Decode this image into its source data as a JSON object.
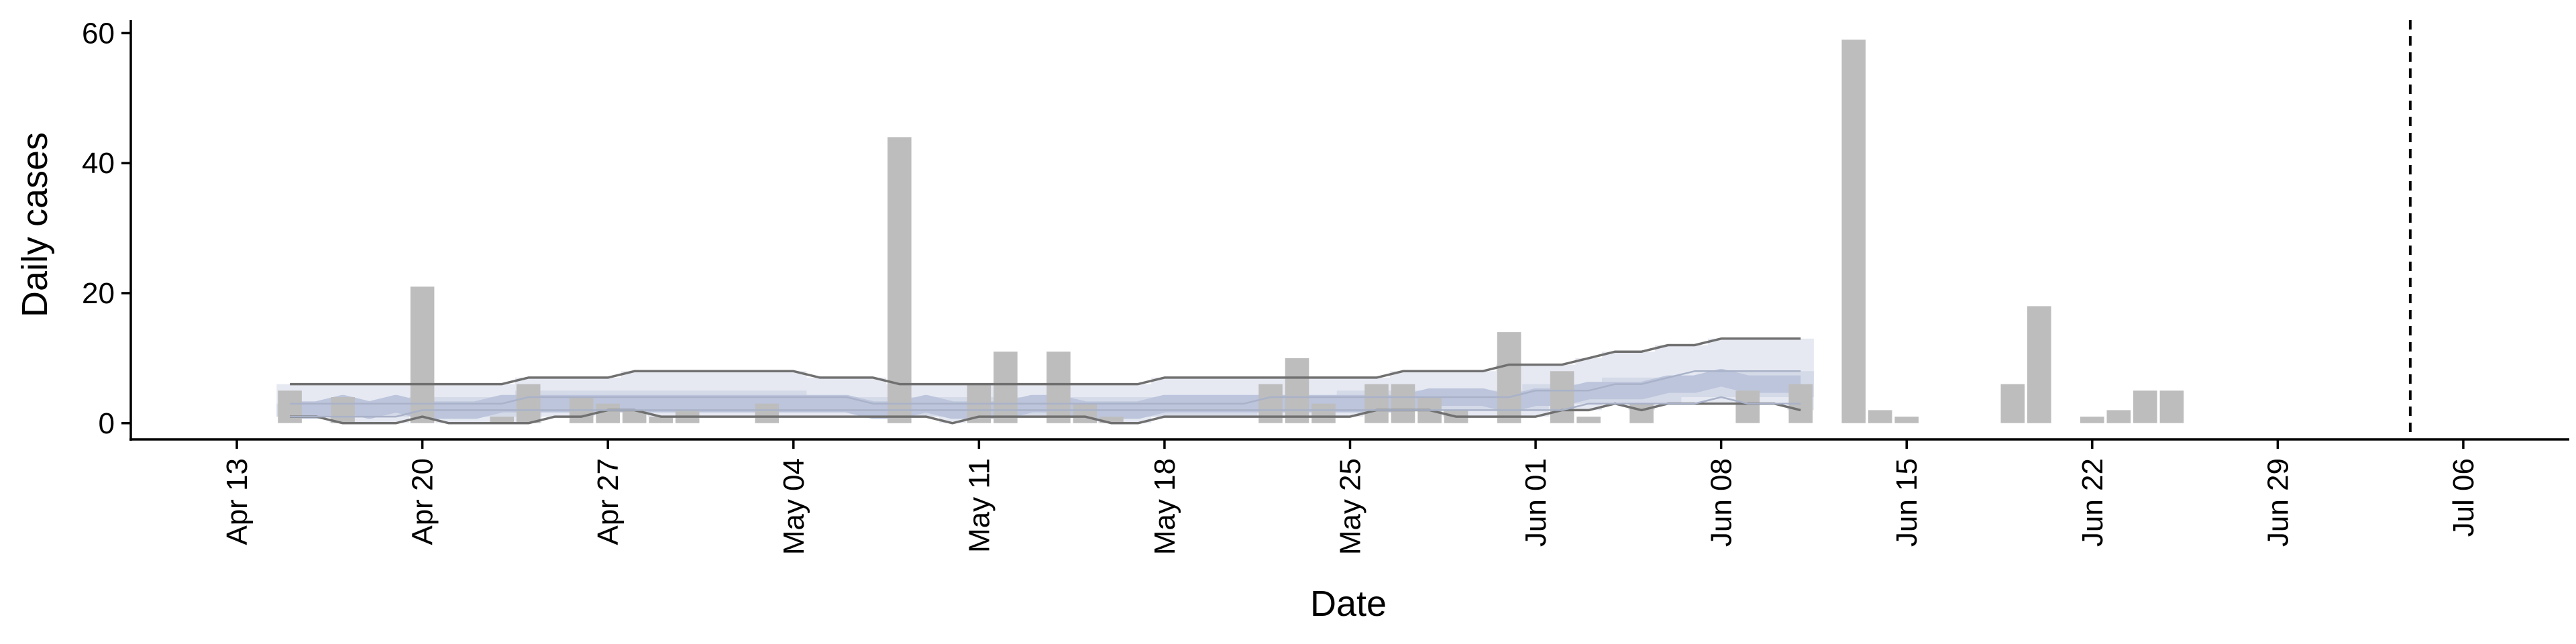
{
  "chart_data": {
    "type": "bar",
    "xlabel": "Date",
    "ylabel": "Daily cases",
    "ylim": [
      -2.5,
      62
    ],
    "xlim": [
      "2020-04-09",
      "2020-07-10"
    ],
    "x_ticks": [
      "2020-04-13",
      "2020-04-20",
      "2020-04-27",
      "2020-05-04",
      "2020-05-11",
      "2020-05-18",
      "2020-05-25",
      "2020-06-01",
      "2020-06-08",
      "2020-06-15",
      "2020-06-22",
      "2020-06-29",
      "2020-07-06"
    ],
    "x_tick_labels": [
      "Apr 13",
      "Apr 20",
      "Apr 27",
      "May 04",
      "May 11",
      "May 18",
      "May 25",
      "Jun 01",
      "Jun 08",
      "Jun 15",
      "Jun 22",
      "Jun 29",
      "Jul 06"
    ],
    "y_ticks": [
      0,
      20,
      40,
      60
    ],
    "y_tick_labels": [
      "0",
      "20",
      "40",
      "60"
    ],
    "grid": false,
    "colors": {
      "bars": "#bdbdbd",
      "band_outer": "#e6e9f2",
      "band_inner": "#c6cde0",
      "median": "#bcc5dc",
      "outer_bounds": "#707070",
      "vline": "#000000"
    },
    "observed_cases": {
      "dates": [
        "2020-04-15",
        "2020-04-17",
        "2020-04-20",
        "2020-04-23",
        "2020-04-24",
        "2020-04-26",
        "2020-04-27",
        "2020-04-28",
        "2020-04-29",
        "2020-04-30",
        "2020-05-03",
        "2020-05-08",
        "2020-05-11",
        "2020-05-12",
        "2020-05-14",
        "2020-05-15",
        "2020-05-16",
        "2020-05-22",
        "2020-05-23",
        "2020-05-24",
        "2020-05-26",
        "2020-05-27",
        "2020-05-28",
        "2020-05-29",
        "2020-05-31",
        "2020-06-02",
        "2020-06-03",
        "2020-06-05",
        "2020-06-09",
        "2020-06-11",
        "2020-06-13",
        "2020-06-14",
        "2020-06-15",
        "2020-06-19",
        "2020-06-20",
        "2020-06-22",
        "2020-06-23",
        "2020-06-24",
        "2020-06-25"
      ],
      "values": [
        5,
        4,
        21,
        1,
        6,
        4,
        3,
        2,
        1,
        2,
        3,
        44,
        6,
        11,
        11,
        3,
        1,
        6,
        10,
        3,
        6,
        6,
        4,
        2,
        14,
        8,
        1,
        3,
        5,
        6,
        59,
        2,
        1,
        6,
        18,
        1,
        2,
        5,
        5
      ]
    },
    "forecast": {
      "dates": [
        "2020-04-15",
        "2020-04-16",
        "2020-04-17",
        "2020-04-18",
        "2020-04-19",
        "2020-04-20",
        "2020-04-21",
        "2020-04-22",
        "2020-04-23",
        "2020-04-24",
        "2020-04-25",
        "2020-04-26",
        "2020-04-27",
        "2020-04-28",
        "2020-04-29",
        "2020-04-30",
        "2020-05-01",
        "2020-05-02",
        "2020-05-03",
        "2020-05-04",
        "2020-05-05",
        "2020-05-06",
        "2020-05-07",
        "2020-05-08",
        "2020-05-09",
        "2020-05-10",
        "2020-05-11",
        "2020-05-12",
        "2020-05-13",
        "2020-05-14",
        "2020-05-15",
        "2020-05-16",
        "2020-05-17",
        "2020-05-18",
        "2020-05-19",
        "2020-05-20",
        "2020-05-21",
        "2020-05-22",
        "2020-05-23",
        "2020-05-24",
        "2020-05-25",
        "2020-05-26",
        "2020-05-27",
        "2020-05-28",
        "2020-05-29",
        "2020-05-30",
        "2020-05-31",
        "2020-06-01",
        "2020-06-02",
        "2020-06-03",
        "2020-06-04",
        "2020-06-05",
        "2020-06-06",
        "2020-06-07",
        "2020-06-08",
        "2020-06-09",
        "2020-06-10",
        "2020-06-11"
      ],
      "outer_upper": [
        6,
        6,
        6,
        6,
        6,
        6,
        6,
        6,
        6,
        7,
        7,
        7,
        7,
        8,
        8,
        8,
        8,
        8,
        8,
        8,
        7,
        7,
        7,
        6,
        6,
        6,
        6,
        6,
        6,
        6,
        6,
        6,
        6,
        7,
        7,
        7,
        7,
        7,
        7,
        7,
        7,
        7,
        8,
        8,
        8,
        8,
        9,
        9,
        9,
        10,
        11,
        11,
        12,
        12,
        13,
        13,
        13,
        13
      ],
      "outer_lower": [
        1,
        1,
        0,
        0,
        0,
        1,
        0,
        0,
        0,
        0,
        1,
        1,
        2,
        2,
        1,
        1,
        1,
        1,
        1,
        1,
        1,
        1,
        1,
        1,
        1,
        0,
        1,
        1,
        1,
        1,
        1,
        0,
        0,
        1,
        1,
        1,
        1,
        1,
        1,
        1,
        1,
        2,
        2,
        2,
        1,
        1,
        1,
        1,
        2,
        2,
        3,
        2,
        3,
        3,
        3,
        3,
        3,
        2
      ],
      "inner_upper": [
        3,
        3,
        3,
        3,
        3,
        4,
        4,
        4,
        4,
        5,
        5,
        5,
        5,
        5,
        5,
        5,
        5,
        5,
        5,
        5,
        4,
        4,
        4,
        4,
        4,
        4,
        4,
        4,
        4,
        4,
        4,
        4,
        4,
        4,
        4,
        4,
        4,
        4,
        4,
        4,
        5,
        5,
        5,
        5,
        5,
        5,
        5,
        6,
        6,
        6,
        7,
        7,
        7,
        7,
        8,
        8,
        8,
        8
      ],
      "inner_lower": [
        1,
        1,
        1,
        1,
        1,
        1,
        1,
        1,
        1,
        1,
        2,
        2,
        2,
        2,
        2,
        2,
        2,
        2,
        2,
        2,
        2,
        2,
        2,
        1,
        1,
        1,
        1,
        1,
        1,
        1,
        1,
        1,
        1,
        1,
        1,
        1,
        1,
        2,
        2,
        2,
        2,
        2,
        2,
        2,
        2,
        2,
        2,
        2,
        3,
        3,
        3,
        3,
        3,
        4,
        4,
        4,
        4,
        4
      ],
      "median": [
        2,
        2,
        3,
        2,
        3,
        2,
        2,
        2,
        3,
        3,
        3,
        3,
        3,
        3,
        3,
        3,
        3,
        3,
        3,
        3,
        3,
        3,
        2,
        2,
        3,
        2,
        2,
        2,
        3,
        3,
        2,
        2,
        2,
        3,
        3,
        3,
        3,
        3,
        3,
        3,
        3,
        3,
        3,
        4,
        4,
        4,
        3,
        4,
        4,
        5,
        5,
        5,
        6,
        6,
        7,
        6,
        6,
        6
      ],
      "inner_outline_upper": [
        3,
        3,
        3,
        3,
        3,
        3,
        3,
        3,
        3,
        4,
        4,
        4,
        4,
        4,
        4,
        4,
        4,
        4,
        4,
        4,
        4,
        4,
        3,
        3,
        3,
        3,
        3,
        3,
        3,
        3,
        3,
        3,
        3,
        3,
        3,
        3,
        3,
        4,
        4,
        4,
        4,
        4,
        4,
        4,
        4,
        4,
        4,
        5,
        5,
        5,
        6,
        6,
        7,
        8,
        8,
        8,
        8,
        8
      ],
      "inner_outline_lower": [
        1,
        1,
        1,
        1,
        1,
        2,
        2,
        2,
        2,
        2,
        2,
        2,
        2,
        2,
        2,
        2,
        2,
        2,
        2,
        2,
        2,
        2,
        2,
        2,
        2,
        2,
        2,
        2,
        2,
        2,
        2,
        2,
        2,
        2,
        2,
        2,
        2,
        2,
        2,
        2,
        2,
        2,
        2,
        2,
        2,
        2,
        2,
        2,
        2,
        3,
        3,
        3,
        3,
        3,
        4,
        3,
        3,
        3
      ]
    },
    "vline_date": "2020-07-04"
  }
}
